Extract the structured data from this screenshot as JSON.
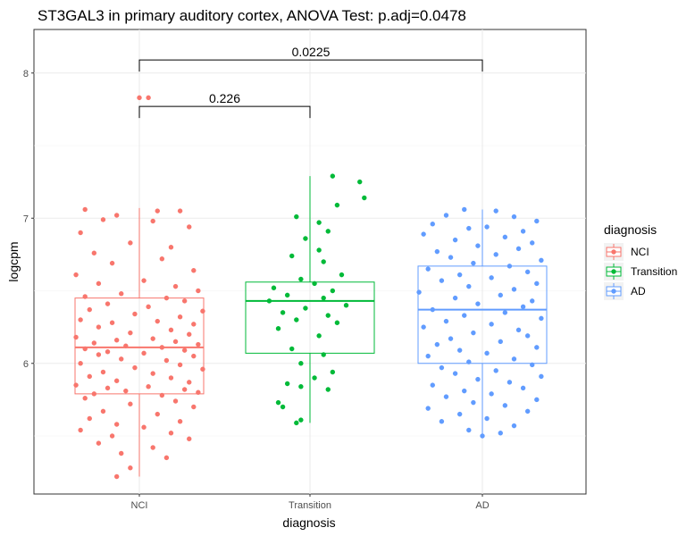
{
  "chart_data": {
    "type": "boxplot",
    "title": "ST3GAL3 in primary auditory cortex, ANOVA Test: p.adj=0.0478",
    "xlabel": "diagnosis",
    "ylabel": "logcpm",
    "categories": [
      "NCI",
      "Transition",
      "AD"
    ],
    "y_ticks": [
      6,
      7,
      8
    ],
    "ylim": [
      5.1,
      8.3
    ],
    "grid": true,
    "legend": {
      "title": "diagnosis",
      "placement": "right",
      "entries": [
        "NCI",
        "Transition",
        "AD"
      ]
    },
    "colors": {
      "NCI": "#F8766D",
      "Transition": "#00BA38",
      "AD": "#619CFF"
    },
    "boxes": [
      {
        "name": "NCI",
        "q1": 5.79,
        "median": 6.11,
        "q3": 6.45,
        "whisker_low": 5.22,
        "whisker_high": 7.07
      },
      {
        "name": "Transition",
        "q1": 6.07,
        "median": 6.43,
        "q3": 6.56,
        "whisker_low": 5.59,
        "whisker_high": 7.29
      },
      {
        "name": "AD",
        "q1": 6.0,
        "median": 6.37,
        "q3": 6.67,
        "whisker_low": 5.5,
        "whisker_high": 7.06
      }
    ],
    "points": {
      "NCI": [
        [
          -0.12,
          7.06
        ],
        [
          0.04,
          7.05
        ],
        [
          -0.05,
          7.02
        ],
        [
          0.09,
          7.05
        ],
        [
          -0.08,
          6.99
        ],
        [
          0.03,
          6.98
        ],
        [
          0.11,
          6.94
        ],
        [
          -0.13,
          6.9
        ],
        [
          -0.02,
          6.83
        ],
        [
          0.07,
          6.8
        ],
        [
          -0.1,
          6.76
        ],
        [
          0.05,
          6.72
        ],
        [
          -0.06,
          6.69
        ],
        [
          0.12,
          6.64
        ],
        [
          -0.14,
          6.61
        ],
        [
          0.01,
          6.57
        ],
        [
          -0.09,
          6.55
        ],
        [
          0.08,
          6.53
        ],
        [
          0.13,
          6.5
        ],
        [
          -0.04,
          6.48
        ],
        [
          -0.12,
          6.46
        ],
        [
          0.06,
          6.45
        ],
        [
          0.1,
          6.43
        ],
        [
          -0.07,
          6.41
        ],
        [
          0.02,
          6.39
        ],
        [
          -0.11,
          6.37
        ],
        [
          0.14,
          6.36
        ],
        [
          -0.01,
          6.34
        ],
        [
          0.09,
          6.32
        ],
        [
          -0.13,
          6.3
        ],
        [
          0.04,
          6.29
        ],
        [
          -0.06,
          6.28
        ],
        [
          0.12,
          6.27
        ],
        [
          -0.09,
          6.25
        ],
        [
          0.07,
          6.23
        ],
        [
          -0.02,
          6.21
        ],
        [
          0.11,
          6.2
        ],
        [
          -0.14,
          6.18
        ],
        [
          0.03,
          6.17
        ],
        [
          -0.05,
          6.16
        ],
        [
          0.08,
          6.15
        ],
        [
          -0.1,
          6.14
        ],
        [
          0.13,
          6.13
        ],
        [
          -0.03,
          6.12
        ],
        [
          0.05,
          6.11
        ],
        [
          -0.12,
          6.1
        ],
        [
          0.1,
          6.09
        ],
        [
          -0.07,
          6.08
        ],
        [
          0.01,
          6.07
        ],
        [
          -0.09,
          6.06
        ],
        [
          0.12,
          6.05
        ],
        [
          -0.04,
          6.03
        ],
        [
          0.06,
          6.02
        ],
        [
          -0.13,
          6.0
        ],
        [
          0.09,
          5.99
        ],
        [
          -0.01,
          5.97
        ],
        [
          0.14,
          5.96
        ],
        [
          -0.08,
          5.94
        ],
        [
          0.03,
          5.93
        ],
        [
          -0.11,
          5.91
        ],
        [
          0.07,
          5.9
        ],
        [
          -0.05,
          5.88
        ],
        [
          0.11,
          5.87
        ],
        [
          -0.14,
          5.85
        ],
        [
          0.02,
          5.84
        ],
        [
          -0.07,
          5.83
        ],
        [
          0.1,
          5.82
        ],
        [
          -0.03,
          5.81
        ],
        [
          0.13,
          5.8
        ],
        [
          -0.1,
          5.79
        ],
        [
          0.05,
          5.78
        ],
        [
          -0.12,
          5.76
        ],
        [
          0.08,
          5.74
        ],
        [
          -0.02,
          5.72
        ],
        [
          0.12,
          5.7
        ],
        [
          -0.08,
          5.67
        ],
        [
          0.04,
          5.65
        ],
        [
          -0.11,
          5.62
        ],
        [
          0.09,
          5.6
        ],
        [
          -0.05,
          5.58
        ],
        [
          0.01,
          5.56
        ],
        [
          -0.13,
          5.54
        ],
        [
          0.07,
          5.52
        ],
        [
          -0.06,
          5.5
        ],
        [
          0.11,
          5.48
        ],
        [
          -0.09,
          5.45
        ],
        [
          0.03,
          5.42
        ],
        [
          -0.04,
          5.38
        ],
        [
          0.06,
          5.35
        ],
        [
          -0.02,
          5.28
        ],
        [
          -0.05,
          5.22
        ],
        [
          0.0,
          7.83
        ],
        [
          0.02,
          7.83
        ]
      ],
      "Transition": [
        [
          0.05,
          7.29
        ],
        [
          0.11,
          7.25
        ],
        [
          0.12,
          7.14
        ],
        [
          0.06,
          7.09
        ],
        [
          -0.03,
          7.01
        ],
        [
          0.02,
          6.97
        ],
        [
          0.04,
          6.91
        ],
        [
          -0.01,
          6.86
        ],
        [
          0.02,
          6.78
        ],
        [
          -0.04,
          6.74
        ],
        [
          0.03,
          6.7
        ],
        [
          0.07,
          6.61
        ],
        [
          -0.02,
          6.58
        ],
        [
          0.01,
          6.55
        ],
        [
          -0.08,
          6.52
        ],
        [
          0.05,
          6.5
        ],
        [
          -0.05,
          6.47
        ],
        [
          0.03,
          6.45
        ],
        [
          -0.09,
          6.43
        ],
        [
          0.08,
          6.4
        ],
        [
          -0.01,
          6.38
        ],
        [
          -0.06,
          6.35
        ],
        [
          0.04,
          6.33
        ],
        [
          -0.03,
          6.3
        ],
        [
          0.06,
          6.28
        ],
        [
          -0.07,
          6.24
        ],
        [
          0.02,
          6.19
        ],
        [
          -0.04,
          6.1
        ],
        [
          0.03,
          6.06
        ],
        [
          -0.02,
          6.0
        ],
        [
          0.05,
          5.94
        ],
        [
          0.01,
          5.9
        ],
        [
          -0.05,
          5.86
        ],
        [
          -0.02,
          5.84
        ],
        [
          0.04,
          5.82
        ],
        [
          -0.07,
          5.73
        ],
        [
          -0.06,
          5.7
        ],
        [
          -0.02,
          5.61
        ],
        [
          -0.03,
          5.59
        ]
      ],
      "AD": [
        [
          -0.04,
          7.06
        ],
        [
          0.03,
          7.05
        ],
        [
          -0.08,
          7.02
        ],
        [
          0.07,
          7.01
        ],
        [
          0.12,
          6.98
        ],
        [
          -0.11,
          6.96
        ],
        [
          0.01,
          6.94
        ],
        [
          -0.03,
          6.93
        ],
        [
          0.09,
          6.91
        ],
        [
          -0.13,
          6.89
        ],
        [
          0.05,
          6.87
        ],
        [
          -0.06,
          6.85
        ],
        [
          0.11,
          6.83
        ],
        [
          -0.01,
          6.81
        ],
        [
          0.08,
          6.79
        ],
        [
          -0.1,
          6.77
        ],
        [
          0.03,
          6.75
        ],
        [
          -0.07,
          6.73
        ],
        [
          0.13,
          6.71
        ],
        [
          -0.02,
          6.69
        ],
        [
          0.06,
          6.67
        ],
        [
          -0.12,
          6.65
        ],
        [
          0.1,
          6.63
        ],
        [
          -0.05,
          6.61
        ],
        [
          0.02,
          6.59
        ],
        [
          -0.09,
          6.57
        ],
        [
          0.12,
          6.55
        ],
        [
          -0.03,
          6.53
        ],
        [
          0.07,
          6.51
        ],
        [
          -0.14,
          6.49
        ],
        [
          0.04,
          6.47
        ],
        [
          -0.06,
          6.45
        ],
        [
          0.11,
          6.43
        ],
        [
          -0.01,
          6.41
        ],
        [
          0.09,
          6.39
        ],
        [
          -0.11,
          6.37
        ],
        [
          0.05,
          6.35
        ],
        [
          -0.04,
          6.33
        ],
        [
          0.13,
          6.31
        ],
        [
          -0.08,
          6.29
        ],
        [
          0.02,
          6.27
        ],
        [
          -0.13,
          6.25
        ],
        [
          0.08,
          6.23
        ],
        [
          -0.02,
          6.21
        ],
        [
          0.1,
          6.19
        ],
        [
          -0.07,
          6.17
        ],
        [
          0.04,
          6.15
        ],
        [
          -0.1,
          6.13
        ],
        [
          0.12,
          6.11
        ],
        [
          -0.05,
          6.09
        ],
        [
          0.01,
          6.07
        ],
        [
          -0.12,
          6.05
        ],
        [
          0.07,
          6.03
        ],
        [
          -0.03,
          6.01
        ],
        [
          0.11,
          5.99
        ],
        [
          -0.09,
          5.97
        ],
        [
          0.03,
          5.95
        ],
        [
          -0.06,
          5.93
        ],
        [
          0.13,
          5.91
        ],
        [
          -0.01,
          5.89
        ],
        [
          0.06,
          5.87
        ],
        [
          -0.11,
          5.85
        ],
        [
          0.09,
          5.83
        ],
        [
          -0.04,
          5.81
        ],
        [
          0.02,
          5.79
        ],
        [
          -0.08,
          5.77
        ],
        [
          0.12,
          5.75
        ],
        [
          -0.02,
          5.73
        ],
        [
          0.05,
          5.71
        ],
        [
          -0.12,
          5.69
        ],
        [
          0.1,
          5.67
        ],
        [
          -0.05,
          5.65
        ],
        [
          0.01,
          5.62
        ],
        [
          -0.09,
          5.6
        ],
        [
          0.07,
          5.57
        ],
        [
          -0.03,
          5.54
        ],
        [
          0.04,
          5.52
        ],
        [
          0.0,
          5.5
        ]
      ]
    },
    "annotations": [
      {
        "from": "NCI",
        "to": "Transition",
        "y": 7.77,
        "label": "0.226"
      },
      {
        "from": "NCI",
        "to": "AD",
        "y": 8.09,
        "label": "0.0225"
      }
    ]
  }
}
